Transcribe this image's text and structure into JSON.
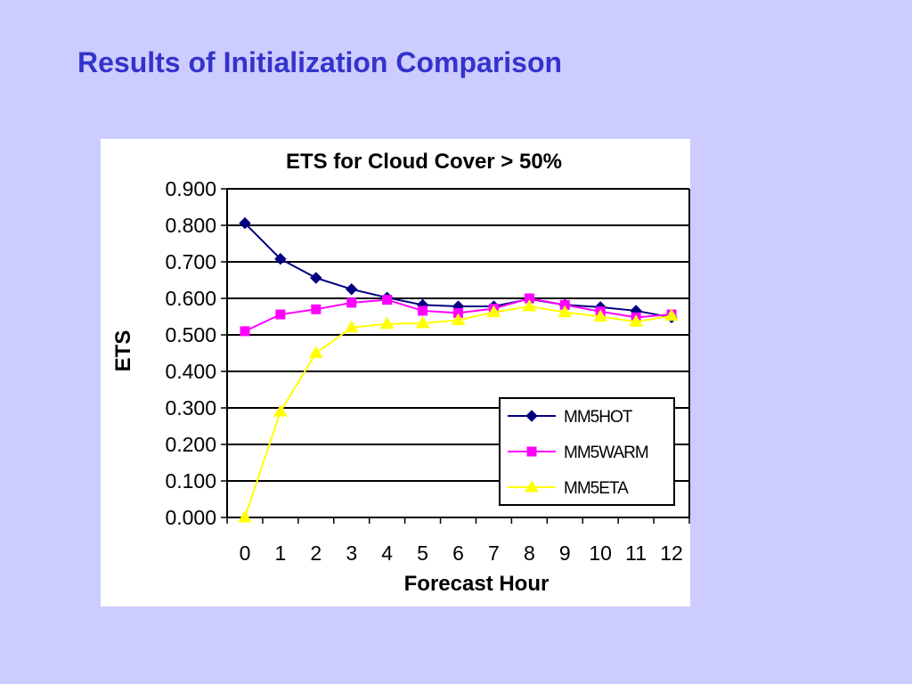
{
  "slide": {
    "title": "Results of Initialization Comparison",
    "title_color": "#3333cc",
    "background": "#ccccff"
  },
  "chart_data": {
    "type": "line",
    "title": "ETS for Cloud Cover > 50%",
    "xlabel": "Forecast Hour",
    "ylabel": "ETS",
    "categories": [
      "0",
      "1",
      "2",
      "3",
      "4",
      "5",
      "6",
      "7",
      "8",
      "9",
      "10",
      "11",
      "12"
    ],
    "y_ticks": [
      "0.000",
      "0.100",
      "0.200",
      "0.300",
      "0.400",
      "0.500",
      "0.600",
      "0.700",
      "0.800",
      "0.900"
    ],
    "ylim": [
      0,
      0.9
    ],
    "grid": true,
    "legend_position": "bottom-right",
    "series": [
      {
        "name": "MM5HOT",
        "color": "#000080",
        "marker": "diamond",
        "values": [
          0.806,
          0.708,
          0.656,
          0.625,
          0.602,
          0.582,
          0.578,
          0.578,
          0.598,
          0.582,
          0.576,
          0.566,
          0.548
        ]
      },
      {
        "name": "MM5WARM",
        "color": "#ff00ff",
        "marker": "square",
        "values": [
          0.51,
          0.556,
          0.57,
          0.588,
          0.596,
          0.566,
          0.56,
          0.572,
          0.6,
          0.582,
          0.564,
          0.548,
          0.556
        ]
      },
      {
        "name": "MM5ETA",
        "color": "#ffff00",
        "marker": "triangle",
        "values": [
          0.0,
          0.29,
          0.45,
          0.52,
          0.53,
          0.532,
          0.54,
          0.562,
          0.578,
          0.562,
          0.55,
          0.536,
          0.552
        ]
      }
    ]
  }
}
